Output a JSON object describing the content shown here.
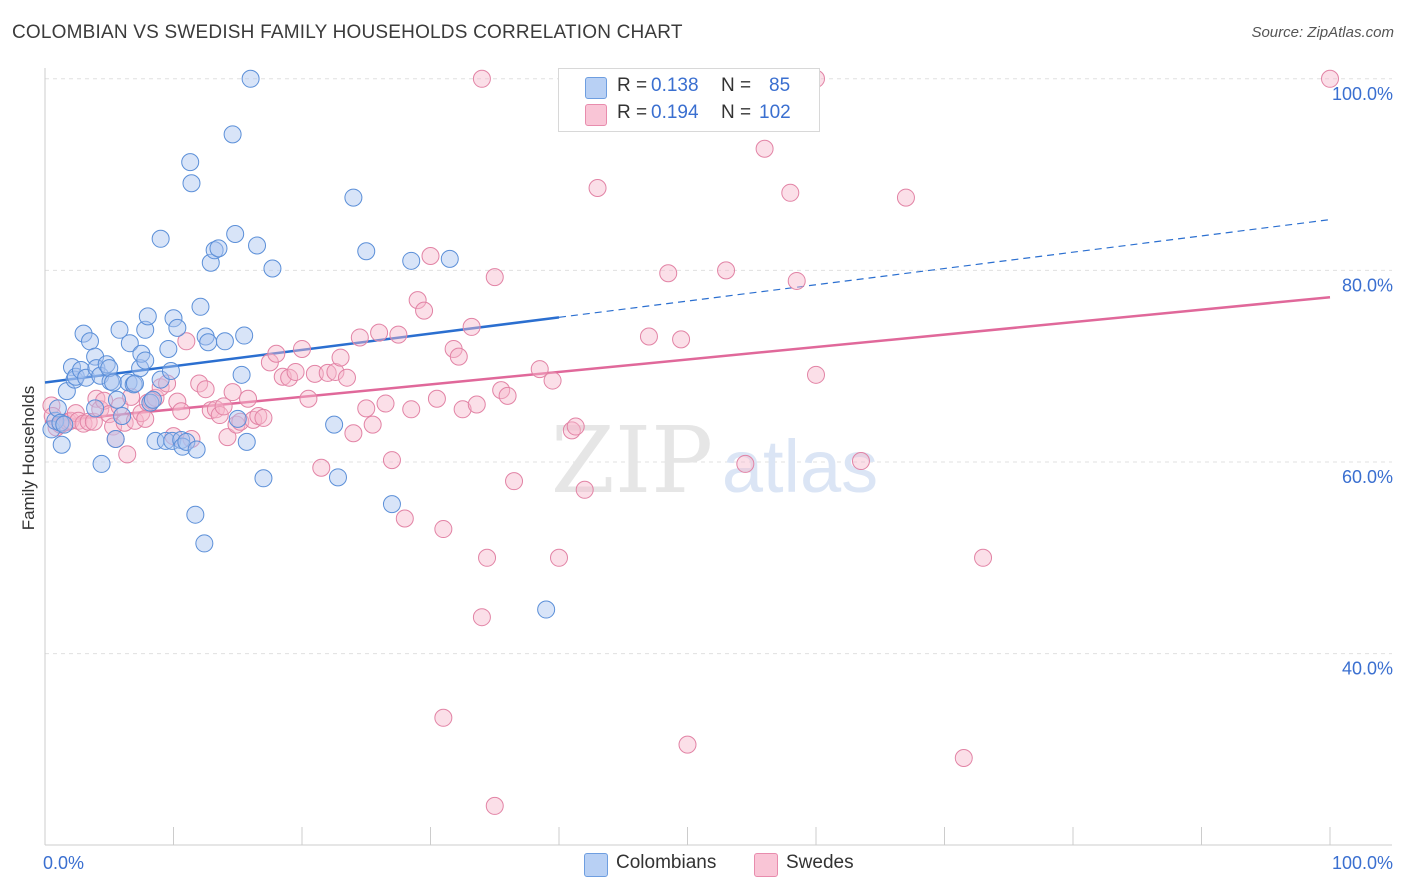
{
  "header": {
    "title": "COLOMBIAN VS SWEDISH FAMILY HOUSEHOLDS CORRELATION CHART",
    "source": "Source: ZipAtlas.com"
  },
  "watermark": {
    "zip": "ZIP",
    "atlas": "atlas"
  },
  "legend": {
    "rows": [
      {
        "r_label": "R =",
        "r_value": "0.138",
        "n_label": "N =",
        "n_value": "85"
      },
      {
        "r_label": "R =",
        "r_value": "0.194",
        "n_label": "N =",
        "n_value": "102"
      }
    ],
    "bottom": [
      "Colombians",
      "Swedes"
    ]
  },
  "colors": {
    "blue_fill": "#a8c4ef",
    "blue_stroke": "#5b8fd8",
    "blue_line": "#2b6fd0",
    "pink_fill": "#f6b8cb",
    "pink_stroke": "#e283a5",
    "pink_line": "#e0689a",
    "tick_label": "#3a6fd0",
    "grid": "#e0e0e0"
  },
  "chart_data": {
    "type": "scatter",
    "title": "COLOMBIAN VS SWEDISH FAMILY HOUSEHOLDS CORRELATION CHART",
    "xlabel": "",
    "ylabel": "Family Households",
    "xlim": [
      0,
      100
    ],
    "ylim": [
      20,
      102
    ],
    "x_tick_labels": [
      "0.0%",
      "100.0%"
    ],
    "y_ticks": [
      40,
      60,
      80,
      100
    ],
    "y_tick_labels": [
      "40.0%",
      "60.0%",
      "80.0%",
      "100.0%"
    ],
    "grid": true,
    "series": [
      {
        "name": "Colombians",
        "R": 0.138,
        "N": 85,
        "trend": {
          "x_start": 0,
          "y_start": 68.3,
          "x_solid_end": 40,
          "y_solid_end": 75.1,
          "x_end": 100,
          "y_end": 85.3
        },
        "points": [
          [
            0.5,
            63.4
          ],
          [
            0.8,
            64.3
          ],
          [
            1.0,
            65.6
          ],
          [
            1.2,
            64.1
          ],
          [
            1.5,
            63.9
          ],
          [
            1.3,
            61.8
          ],
          [
            1.7,
            67.4
          ],
          [
            2.1,
            69.9
          ],
          [
            2.3,
            68.6
          ],
          [
            2.4,
            68.9
          ],
          [
            2.8,
            69.6
          ],
          [
            3.0,
            73.4
          ],
          [
            3.2,
            68.8
          ],
          [
            3.5,
            72.6
          ],
          [
            3.9,
            71.0
          ],
          [
            4.0,
            69.8
          ],
          [
            3.9,
            65.6
          ],
          [
            4.3,
            69.0
          ],
          [
            4.4,
            59.8
          ],
          [
            4.8,
            70.2
          ],
          [
            5.1,
            68.4
          ],
          [
            5.0,
            69.8
          ],
          [
            5.3,
            68.3
          ],
          [
            5.5,
            62.4
          ],
          [
            5.6,
            66.5
          ],
          [
            5.8,
            73.8
          ],
          [
            6.0,
            64.8
          ],
          [
            6.5,
            68.3
          ],
          [
            6.6,
            72.4
          ],
          [
            6.9,
            68.1
          ],
          [
            7.0,
            68.2
          ],
          [
            7.4,
            69.8
          ],
          [
            7.5,
            71.3
          ],
          [
            7.8,
            70.6
          ],
          [
            7.8,
            73.8
          ],
          [
            8.0,
            75.2
          ],
          [
            8.2,
            66.2
          ],
          [
            8.4,
            66.5
          ],
          [
            8.6,
            62.2
          ],
          [
            9.0,
            68.6
          ],
          [
            9.0,
            83.3
          ],
          [
            9.4,
            62.2
          ],
          [
            9.6,
            71.8
          ],
          [
            9.8,
            69.5
          ],
          [
            9.9,
            62.2
          ],
          [
            10.0,
            75.0
          ],
          [
            10.3,
            74.0
          ],
          [
            10.6,
            62.3
          ],
          [
            10.7,
            61.6
          ],
          [
            11.0,
            62.1
          ],
          [
            11.3,
            91.3
          ],
          [
            11.4,
            89.1
          ],
          [
            11.7,
            54.5
          ],
          [
            11.8,
            61.3
          ],
          [
            12.1,
            76.2
          ],
          [
            12.4,
            51.5
          ],
          [
            12.5,
            73.1
          ],
          [
            12.7,
            72.5
          ],
          [
            12.9,
            80.8
          ],
          [
            13.2,
            82.1
          ],
          [
            13.5,
            82.3
          ],
          [
            14.0,
            72.6
          ],
          [
            14.6,
            94.2
          ],
          [
            14.8,
            83.8
          ],
          [
            15.0,
            64.5
          ],
          [
            15.3,
            69.1
          ],
          [
            15.5,
            73.2
          ],
          [
            15.7,
            62.1
          ],
          [
            16.0,
            100.0
          ],
          [
            16.5,
            82.6
          ],
          [
            17.0,
            58.3
          ],
          [
            17.7,
            80.2
          ],
          [
            22.5,
            63.9
          ],
          [
            22.8,
            58.4
          ],
          [
            24.0,
            87.6
          ],
          [
            25.0,
            82.0
          ],
          [
            27.0,
            55.6
          ],
          [
            28.5,
            81.0
          ],
          [
            31.5,
            81.2
          ],
          [
            39.0,
            44.6
          ]
        ]
      },
      {
        "name": "Swedes",
        "R": 0.194,
        "N": 102,
        "trend": {
          "x_start": 0,
          "y_start": 64.2,
          "x_end": 100,
          "y_end": 77.2
        },
        "points": [
          [
            0.5,
            65.9
          ],
          [
            0.6,
            64.8
          ],
          [
            0.9,
            63.6
          ],
          [
            1.2,
            63.9
          ],
          [
            1.5,
            64.1
          ],
          [
            1.8,
            64.2
          ],
          [
            2.0,
            64.3
          ],
          [
            2.4,
            65.1
          ],
          [
            2.6,
            64.3
          ],
          [
            3.0,
            64.0
          ],
          [
            3.4,
            64.2
          ],
          [
            3.8,
            64.2
          ],
          [
            4.0,
            66.6
          ],
          [
            4.3,
            65.5
          ],
          [
            4.6,
            66.4
          ],
          [
            5.0,
            65.0
          ],
          [
            5.3,
            63.7
          ],
          [
            5.5,
            62.4
          ],
          [
            5.8,
            65.8
          ],
          [
            6.2,
            64.1
          ],
          [
            6.4,
            60.8
          ],
          [
            6.7,
            66.8
          ],
          [
            7.0,
            64.3
          ],
          [
            7.5,
            65.1
          ],
          [
            7.8,
            64.5
          ],
          [
            8.0,
            66.2
          ],
          [
            8.3,
            66.4
          ],
          [
            8.6,
            66.7
          ],
          [
            9.0,
            67.8
          ],
          [
            9.5,
            68.2
          ],
          [
            10.0,
            62.7
          ],
          [
            10.3,
            66.3
          ],
          [
            10.6,
            65.3
          ],
          [
            11.0,
            72.6
          ],
          [
            11.4,
            62.4
          ],
          [
            12.0,
            68.2
          ],
          [
            12.5,
            67.6
          ],
          [
            12.9,
            65.4
          ],
          [
            13.3,
            65.5
          ],
          [
            13.6,
            64.9
          ],
          [
            13.9,
            65.8
          ],
          [
            14.2,
            62.6
          ],
          [
            14.6,
            67.3
          ],
          [
            14.9,
            63.9
          ],
          [
            15.2,
            64.2
          ],
          [
            15.8,
            66.6
          ],
          [
            16.2,
            64.4
          ],
          [
            16.6,
            64.8
          ],
          [
            17.0,
            64.6
          ],
          [
            17.5,
            70.4
          ],
          [
            18.0,
            71.3
          ],
          [
            18.5,
            68.9
          ],
          [
            19.0,
            68.8
          ],
          [
            19.5,
            69.4
          ],
          [
            20.0,
            71.8
          ],
          [
            20.5,
            66.6
          ],
          [
            21.0,
            69.2
          ],
          [
            21.5,
            59.4
          ],
          [
            22.0,
            69.3
          ],
          [
            22.6,
            69.4
          ],
          [
            23.0,
            70.9
          ],
          [
            23.5,
            68.8
          ],
          [
            24.0,
            63.0
          ],
          [
            24.5,
            73.0
          ],
          [
            25.0,
            65.6
          ],
          [
            25.5,
            63.9
          ],
          [
            26.0,
            73.5
          ],
          [
            26.5,
            66.1
          ],
          [
            27.0,
            60.2
          ],
          [
            27.5,
            73.3
          ],
          [
            28.0,
            54.1
          ],
          [
            28.5,
            65.5
          ],
          [
            29.0,
            76.9
          ],
          [
            29.5,
            75.8
          ],
          [
            30.0,
            81.5
          ],
          [
            30.5,
            66.6
          ],
          [
            31.0,
            53.0
          ],
          [
            31.8,
            71.8
          ],
          [
            32.2,
            71.0
          ],
          [
            32.5,
            65.5
          ],
          [
            33.2,
            74.1
          ],
          [
            33.6,
            66.0
          ],
          [
            34.0,
            43.8
          ],
          [
            34.4,
            50.0
          ],
          [
            35.0,
            79.3
          ],
          [
            35.5,
            67.5
          ],
          [
            36.0,
            66.9
          ],
          [
            36.5,
            58.0
          ],
          [
            38.5,
            69.7
          ],
          [
            39.5,
            68.5
          ],
          [
            40.0,
            50.0
          ],
          [
            41.0,
            63.3
          ],
          [
            41.3,
            63.7
          ],
          [
            42.0,
            57.1
          ],
          [
            43.0,
            88.6
          ],
          [
            45.5,
            100.0
          ],
          [
            47.0,
            73.1
          ],
          [
            48.5,
            79.7
          ],
          [
            49.5,
            72.8
          ],
          [
            50.0,
            30.5
          ],
          [
            53.0,
            80.0
          ],
          [
            54.5,
            59.8
          ],
          [
            56.0,
            92.7
          ],
          [
            58.0,
            88.1
          ],
          [
            58.5,
            78.9
          ],
          [
            60.0,
            69.1
          ],
          [
            63.5,
            60.1
          ],
          [
            67.0,
            87.6
          ],
          [
            71.5,
            29.1
          ],
          [
            73.0,
            50.0
          ],
          [
            100.0,
            100.0
          ],
          [
            34.0,
            100.0
          ],
          [
            31.0,
            33.3
          ],
          [
            35.0,
            24.1
          ],
          [
            60.0,
            100.0
          ]
        ]
      }
    ]
  }
}
